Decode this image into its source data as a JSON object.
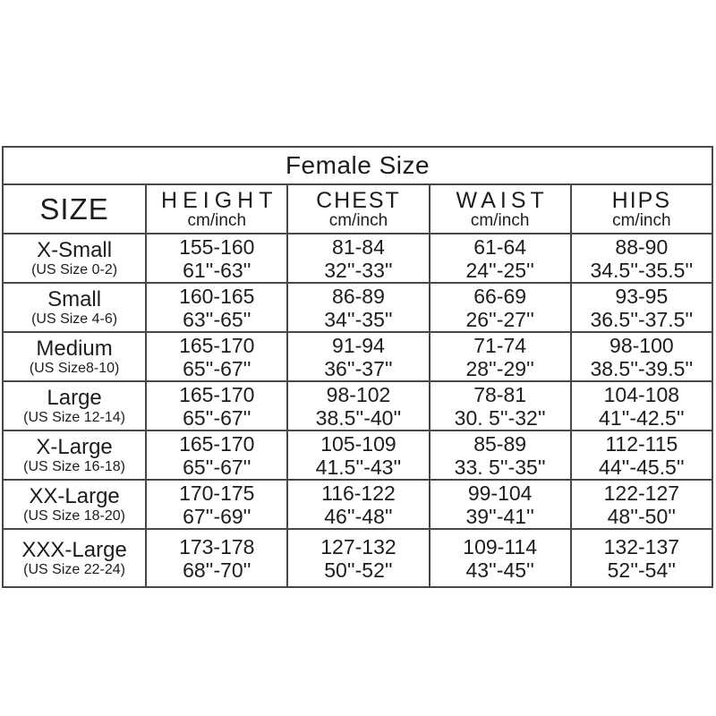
{
  "accent_colors": {
    "border": "#474747",
    "text": "#1d1d1d",
    "background": "#ffffff"
  },
  "table": {
    "title": "Female Size",
    "headers": {
      "size": "SIZE",
      "height": {
        "label": "HEIGHT",
        "sub": "cm/inch"
      },
      "chest": {
        "label": "CHEST",
        "sub": "cm/inch"
      },
      "waist": {
        "label": "WAIST",
        "sub": "cm/inch"
      },
      "hips": {
        "label": "HIPS",
        "sub": "cm/inch"
      }
    },
    "rows": [
      {
        "size": "X-Small",
        "us": "(US Size 0-2)",
        "h_cm": "155-160",
        "h_in": "61''-63''",
        "c_cm": "81-84",
        "c_in": "32''-33''",
        "w_cm": "61-64",
        "w_in": "24''-25''",
        "p_cm": "88-90",
        "p_in": "34.5''-35.5''"
      },
      {
        "size": "Small",
        "us": "(US Size 4-6)",
        "h_cm": "160-165",
        "h_in": "63''-65''",
        "c_cm": "86-89",
        "c_in": "34''-35''",
        "w_cm": "66-69",
        "w_in": "26''-27''",
        "p_cm": "93-95",
        "p_in": "36.5''-37.5''"
      },
      {
        "size": "Medium",
        "us": "(US Size8-10)",
        "h_cm": "165-170",
        "h_in": "65''-67''",
        "c_cm": "91-94",
        "c_in": "36''-37''",
        "w_cm": "71-74",
        "w_in": "28''-29''",
        "p_cm": "98-100",
        "p_in": "38.5''-39.5''"
      },
      {
        "size": "Large",
        "us": "(US Size 12-14)",
        "h_cm": "165-170",
        "h_in": "65''-67''",
        "c_cm": "98-102",
        "c_in": "38.5''-40''",
        "w_cm": "78-81",
        "w_in": "30. 5''-32''",
        "p_cm": "104-108",
        "p_in": "41''-42.5''"
      },
      {
        "size": "X-Large",
        "us": "(US Size 16-18)",
        "h_cm": "165-170",
        "h_in": "65''-67''",
        "c_cm": "105-109",
        "c_in": "41.5''-43''",
        "w_cm": "85-89",
        "w_in": "33. 5''-35''",
        "p_cm": "112-115",
        "p_in": "44''-45.5''"
      },
      {
        "size": "XX-Large",
        "us": "(US Size 18-20)",
        "h_cm": "170-175",
        "h_in": "67''-69''",
        "c_cm": "116-122",
        "c_in": "46''-48''",
        "w_cm": "99-104",
        "w_in": "39''-41''",
        "p_cm": "122-127",
        "p_in": "48''-50''"
      },
      {
        "size": "XXX-Large",
        "us": "(US Size 22-24)",
        "h_cm": "173-178",
        "h_in": "68''-70''",
        "c_cm": "127-132",
        "c_in": "50''-52''",
        "w_cm": "109-114",
        "w_in": "43''-45''",
        "p_cm": "132-137",
        "p_in": "52''-54''"
      }
    ]
  },
  "chart_data": {
    "type": "table",
    "title": "Female Size",
    "columns": [
      "SIZE",
      "HEIGHT cm/inch",
      "CHEST cm/inch",
      "WAIST cm/inch",
      "HIPS cm/inch"
    ],
    "rows": [
      [
        "X-Small (US Size 0-2)",
        "155-160 / 61''-63''",
        "81-84 / 32''-33''",
        "61-64 / 24''-25''",
        "88-90 / 34.5''-35.5''"
      ],
      [
        "Small (US Size 4-6)",
        "160-165 / 63''-65''",
        "86-89 / 34''-35''",
        "66-69 / 26''-27''",
        "93-95 / 36.5''-37.5''"
      ],
      [
        "Medium (US Size8-10)",
        "165-170 / 65''-67''",
        "91-94 / 36''-37''",
        "71-74 / 28''-29''",
        "98-100 / 38.5''-39.5''"
      ],
      [
        "Large (US Size 12-14)",
        "165-170 / 65''-67''",
        "98-102 / 38.5''-40''",
        "78-81 / 30. 5''-32''",
        "104-108 / 41''-42.5''"
      ],
      [
        "X-Large (US Size 16-18)",
        "165-170 / 65''-67''",
        "105-109 / 41.5''-43''",
        "85-89 / 33. 5''-35''",
        "112-115 / 44''-45.5''"
      ],
      [
        "XX-Large (US Size 18-20)",
        "170-175 / 67''-69''",
        "116-122 / 46''-48''",
        "99-104 / 39''-41''",
        "122-127 / 48''-50''"
      ],
      [
        "XXX-Large (US Size 22-24)",
        "173-178 / 68''-70''",
        "127-132 / 50''-52''",
        "109-114 / 43''-45''",
        "132-137 / 52''-54''"
      ]
    ]
  }
}
